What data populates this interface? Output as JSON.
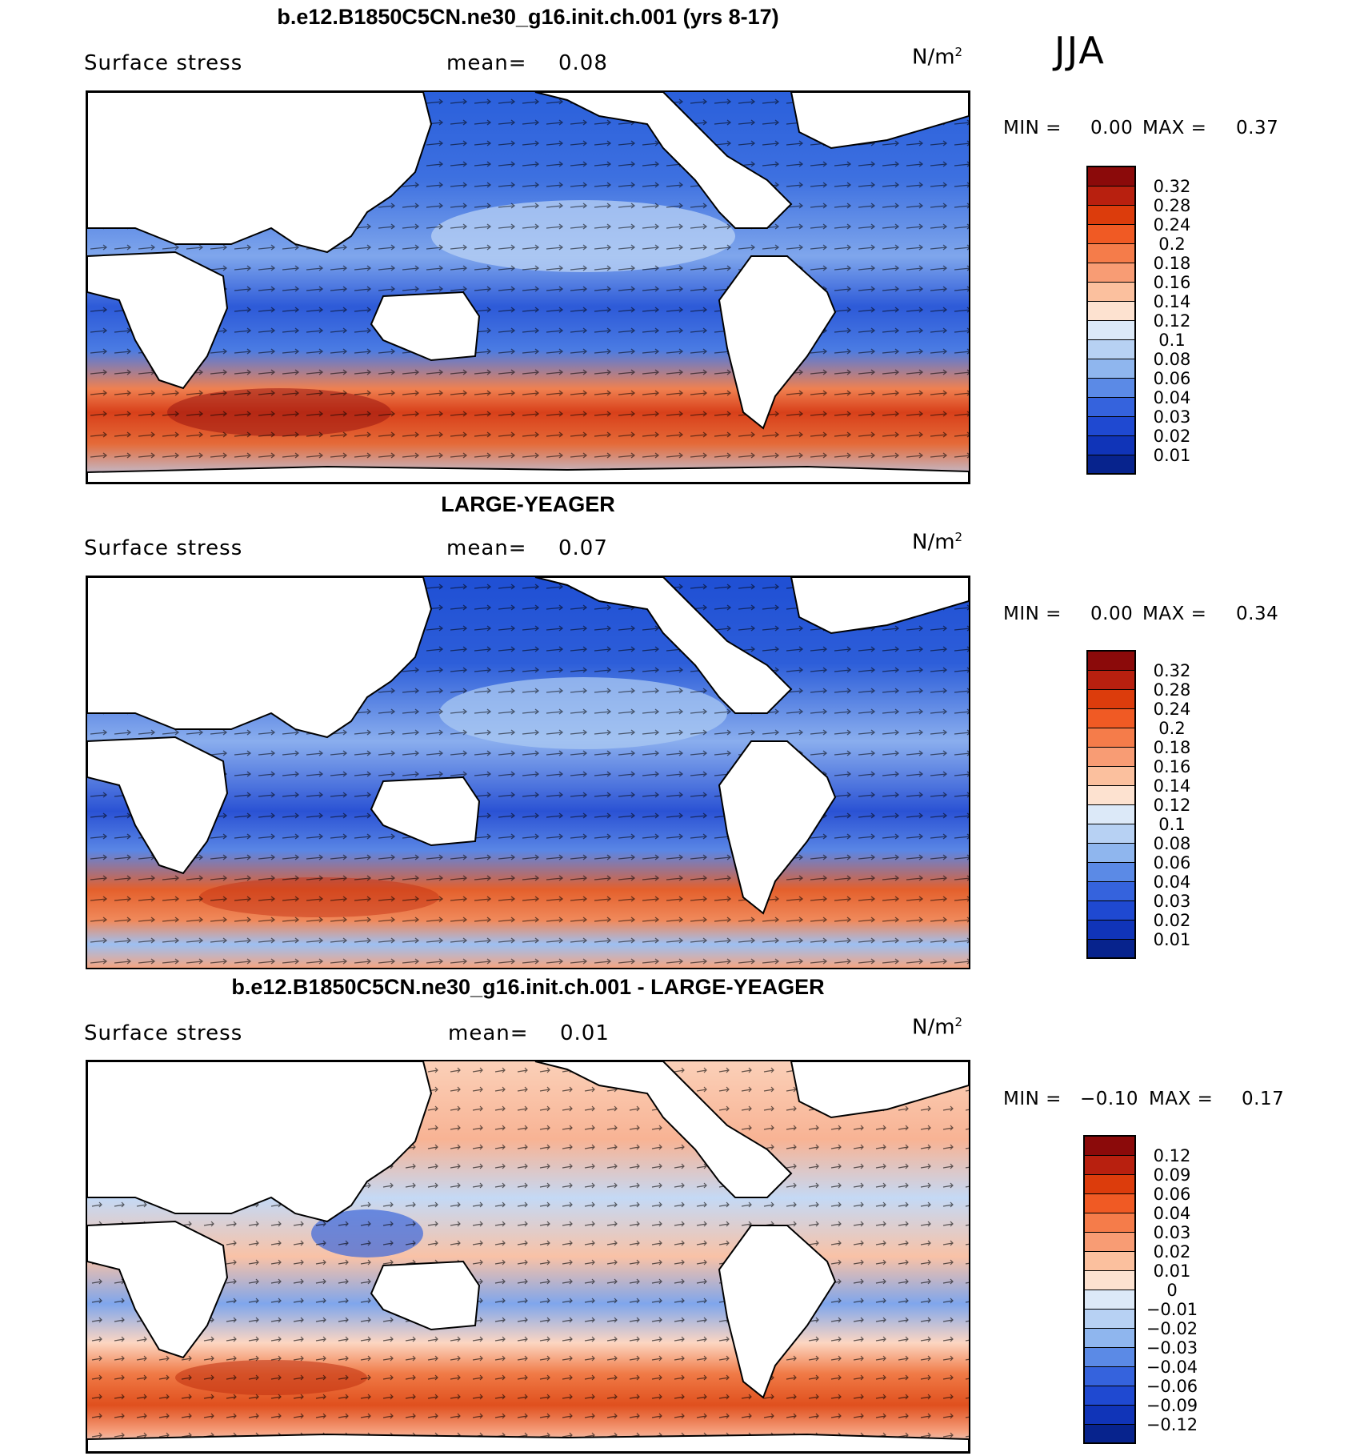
{
  "season": "JJA",
  "units_main": "N/m",
  "units_sup": "2",
  "min_label": "MIN =",
  "max_label": "MAX =",
  "variable": "Surface stress",
  "mean_label": "mean=",
  "panels": [
    {
      "title": "b.e12.B1850C5CN.ne30_g16.init.ch.001 (yrs 8-17)",
      "mean": "0.08",
      "min": "0.00",
      "max": "0.37",
      "colorbar": {
        "labels": [
          "0.32",
          "0.28",
          "0.24",
          "0.2",
          "0.18",
          "0.16",
          "0.14",
          "0.12",
          "0.1",
          "0.08",
          "0.06",
          "0.04",
          "0.03",
          "0.02",
          "0.01"
        ],
        "colors": [
          "#8b0a0a",
          "#b8200f",
          "#dc3c0c",
          "#f05a24",
          "#f57c4a",
          "#f89c74",
          "#fbc09e",
          "#fde2d0",
          "#dce9f8",
          "#b7d1f3",
          "#8fb6ee",
          "#5b8ae6",
          "#3563dd",
          "#1f49d1",
          "#1034b8",
          "#07238d"
        ]
      }
    },
    {
      "title": "LARGE-YEAGER",
      "mean": "0.07",
      "min": "0.00",
      "max": "0.34",
      "colorbar": {
        "labels": [
          "0.32",
          "0.28",
          "0.24",
          "0.2",
          "0.18",
          "0.16",
          "0.14",
          "0.12",
          "0.1",
          "0.08",
          "0.06",
          "0.04",
          "0.03",
          "0.02",
          "0.01"
        ],
        "colors": [
          "#8b0a0a",
          "#b8200f",
          "#dc3c0c",
          "#f05a24",
          "#f57c4a",
          "#f89c74",
          "#fbc09e",
          "#fde2d0",
          "#dce9f8",
          "#b7d1f3",
          "#8fb6ee",
          "#5b8ae6",
          "#3563dd",
          "#1f49d1",
          "#1034b8",
          "#07238d"
        ]
      }
    },
    {
      "title": "b.e12.B1850C5CN.ne30_g16.init.ch.001 - LARGE-YEAGER",
      "mean": "0.01",
      "min": "−0.10",
      "max": "0.17",
      "colorbar": {
        "labels": [
          "0.12",
          "0.09",
          "0.06",
          "0.04",
          "0.03",
          "0.02",
          "0.01",
          "0",
          "−0.01",
          "−0.02",
          "−0.03",
          "−0.04",
          "−0.06",
          "−0.09",
          "−0.12"
        ],
        "colors": [
          "#8b0a0a",
          "#b8200f",
          "#dc3c0c",
          "#f05a24",
          "#f57c4a",
          "#f89c74",
          "#fbc09e",
          "#fde2d0",
          "#dce9f8",
          "#b7d1f3",
          "#8fb6ee",
          "#5b8ae6",
          "#3563dd",
          "#1f49d1",
          "#1034b8",
          "#07238d"
        ]
      }
    }
  ]
}
